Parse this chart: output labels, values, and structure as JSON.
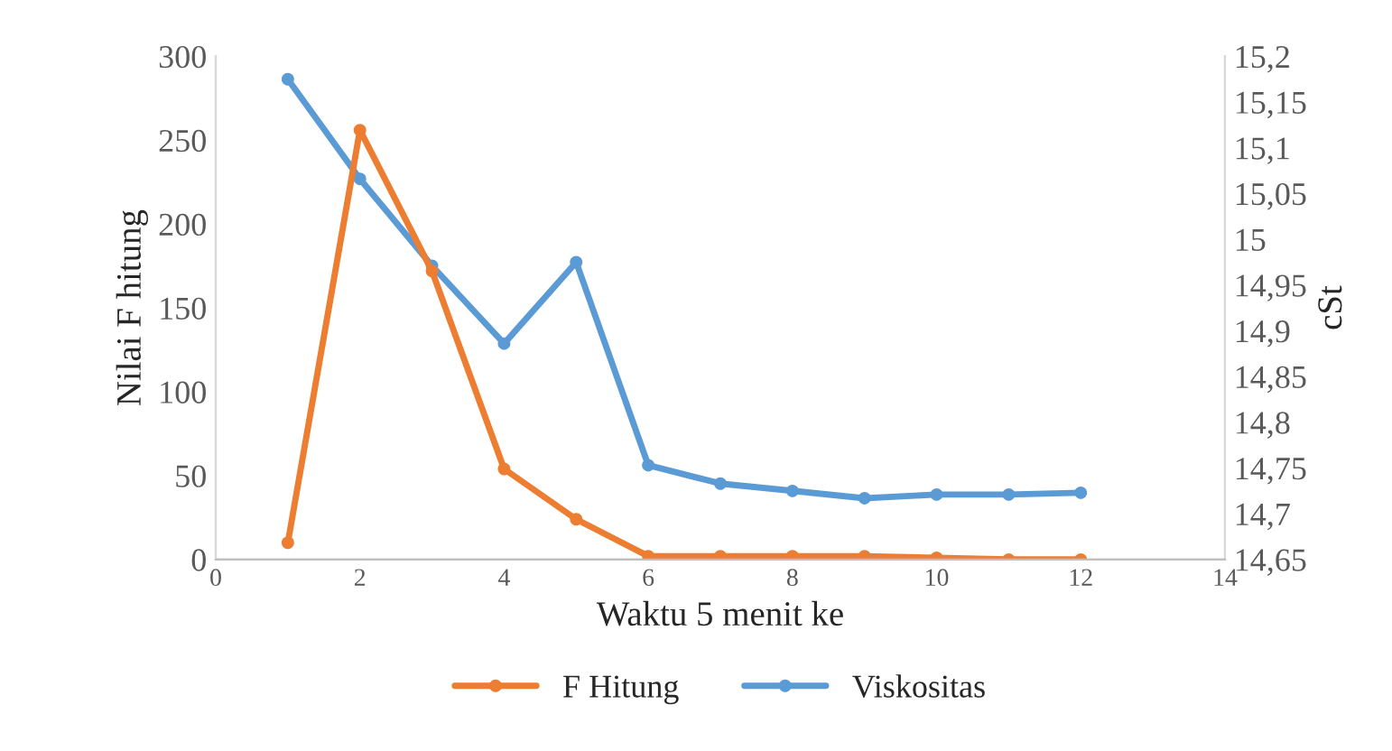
{
  "chart_data": {
    "type": "line",
    "xlabel": "Waktu 5 menit ke",
    "ylabel": "Nilai F hitung",
    "y2label": "cSt",
    "x": [
      1,
      2,
      3,
      4,
      5,
      6,
      7,
      8,
      9,
      10,
      11,
      12
    ],
    "series": [
      {
        "name": "F Hitung",
        "color": "#ed7d31",
        "values": [
          10,
          256,
          172,
          54,
          24,
          2,
          2,
          2,
          2,
          1,
          0,
          0
        ]
      },
      {
        "name": "Viskositas",
        "color": "#5b9bd5",
        "axis": "y2",
        "values": [
          15.175,
          15.066,
          14.971,
          14.886,
          14.975,
          14.753,
          14.733,
          14.725,
          14.717,
          14.721,
          14.721,
          14.723
        ]
      }
    ],
    "xlim": [
      0,
      14
    ],
    "xticks": [
      0,
      2,
      4,
      6,
      8,
      10,
      12,
      14
    ],
    "ylim": [
      0,
      300
    ],
    "yticks": [
      0,
      50,
      100,
      150,
      200,
      250,
      300
    ],
    "y2lim": [
      14.65,
      15.2
    ],
    "y2ticks": [
      {
        "value": 14.65,
        "label": "14,65"
      },
      {
        "value": 14.7,
        "label": "14,7"
      },
      {
        "value": 14.75,
        "label": "14,75"
      },
      {
        "value": 14.8,
        "label": "14,8"
      },
      {
        "value": 14.85,
        "label": "14,85"
      },
      {
        "value": 14.9,
        "label": "14,9"
      },
      {
        "value": 14.95,
        "label": "14,95"
      },
      {
        "value": 15.0,
        "label": "15"
      },
      {
        "value": 15.05,
        "label": "15,05"
      },
      {
        "value": 15.1,
        "label": "15,1"
      },
      {
        "value": 15.15,
        "label": "15,15"
      },
      {
        "value": 15.2,
        "label": "15,2"
      }
    ],
    "marker": "circle",
    "line_style": "solid",
    "legend": "bottom",
    "grid": false
  }
}
